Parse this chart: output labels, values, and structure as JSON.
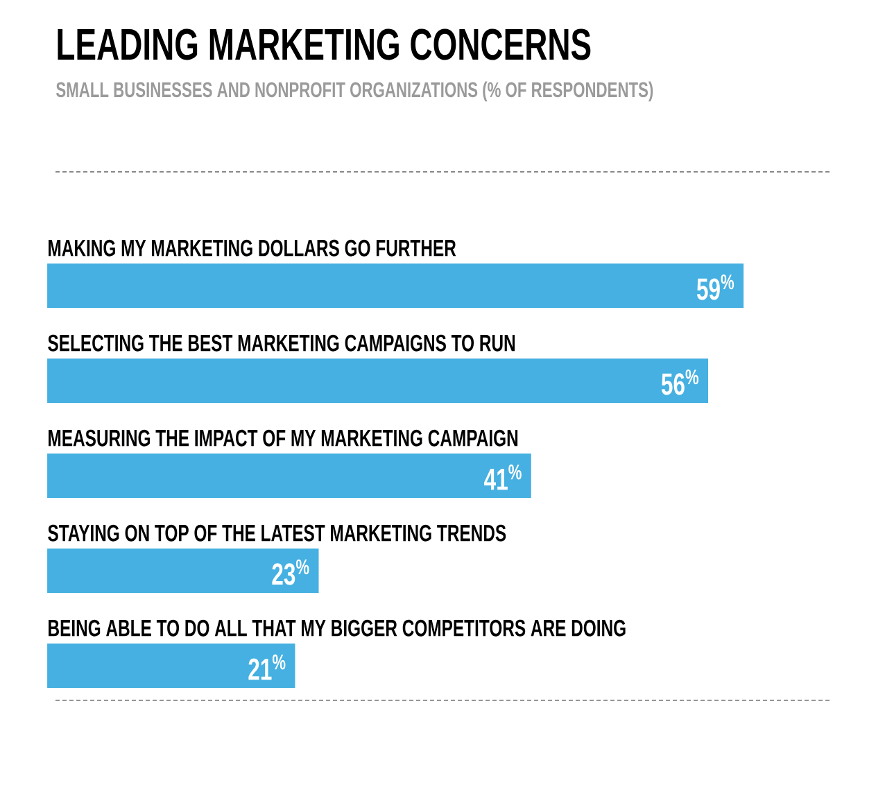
{
  "chart_data": {
    "type": "bar",
    "orientation": "horizontal",
    "title": "LEADING MARKETING CONCERNS",
    "subtitle": "SMALL BUSINESSES AND NONPROFIT ORGANIZATIONS (% OF RESPONDENTS)",
    "categories": [
      "MAKING MY MARKETING DOLLARS GO FURTHER",
      "SELECTING THE BEST MARKETING CAMPAIGNS TO RUN",
      "MEASURING THE IMPACT OF MY MARKETING CAMPAIGN",
      "STAYING ON TOP OF THE LATEST MARKETING TRENDS",
      "BEING ABLE TO DO ALL THAT MY BIGGER COMPETITORS ARE DOING"
    ],
    "values": [
      59,
      56,
      41,
      23,
      21
    ],
    "value_labels": [
      "59$^{%}$",
      "56$^{%}$",
      "41$^{%}$",
      "23$^{%}$",
      "21$^{%}$"
    ],
    "color": "#45b0e1"
  }
}
